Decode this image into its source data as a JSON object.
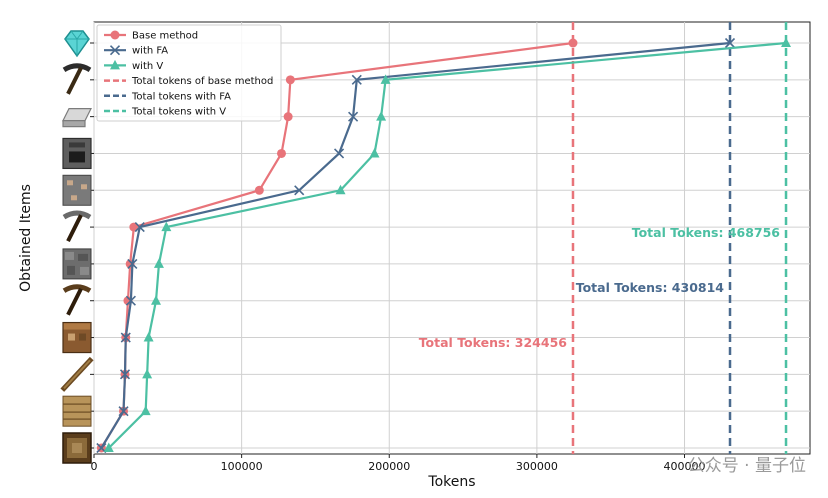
{
  "chart_data": {
    "type": "line",
    "xlabel": "Tokens",
    "ylabel": "Obtained Items",
    "xlim": [
      0,
      485000
    ],
    "x_ticks": [
      0,
      100000,
      200000,
      300000,
      400000
    ],
    "x_tick_labels": [
      "0",
      "100000",
      "200000",
      "300000",
      "400000"
    ],
    "grid": true,
    "legend_position": "top-left",
    "y_categories": [
      {
        "name": "log",
        "icon": "oak-log-icon"
      },
      {
        "name": "planks",
        "icon": "oak-planks-icon"
      },
      {
        "name": "stick",
        "icon": "stick-icon"
      },
      {
        "name": "crafting table",
        "icon": "crafting-table-icon"
      },
      {
        "name": "wooden pickaxe",
        "icon": "wooden-pickaxe-icon"
      },
      {
        "name": "cobblestone",
        "icon": "cobblestone-icon"
      },
      {
        "name": "stone pickaxe",
        "icon": "stone-pickaxe-icon"
      },
      {
        "name": "iron ore",
        "icon": "iron-ore-icon"
      },
      {
        "name": "furnace",
        "icon": "furnace-icon"
      },
      {
        "name": "iron ingot",
        "icon": "iron-ingot-icon"
      },
      {
        "name": "iron pickaxe",
        "icon": "iron-pickaxe-icon"
      },
      {
        "name": "diamond",
        "icon": "diamond-icon"
      }
    ],
    "series": [
      {
        "name": "Base method",
        "color": "#e8747a",
        "marker": "circle",
        "x": [
          5000,
          20000,
          21000,
          21500,
          23000,
          24500,
          27000,
          112000,
          127000,
          131500,
          133000,
          324456
        ]
      },
      {
        "name": "with FA",
        "color": "#4a6a8e",
        "marker": "x",
        "x": [
          5000,
          20000,
          21000,
          21500,
          25000,
          26000,
          31000,
          139000,
          166000,
          175500,
          178000,
          430814
        ]
      },
      {
        "name": "with V",
        "color": "#4cc0a3",
        "marker": "triangle",
        "x": [
          10000,
          35000,
          36000,
          37000,
          42000,
          44000,
          49000,
          167000,
          190000,
          194500,
          197500,
          468756
        ]
      }
    ],
    "vlines": [
      {
        "name": "Total tokens of base method",
        "x": 324456,
        "color": "#e8747a",
        "label": "Total Tokens: 324456"
      },
      {
        "name": "Total tokens with FA",
        "x": 430814,
        "color": "#4a6a8e",
        "label": "Total Tokens: 430814"
      },
      {
        "name": "Total tokens with V",
        "x": 468756,
        "color": "#4cc0a3",
        "label": "Total Tokens: 468756"
      }
    ]
  },
  "watermark": "公众号 · 量子位"
}
